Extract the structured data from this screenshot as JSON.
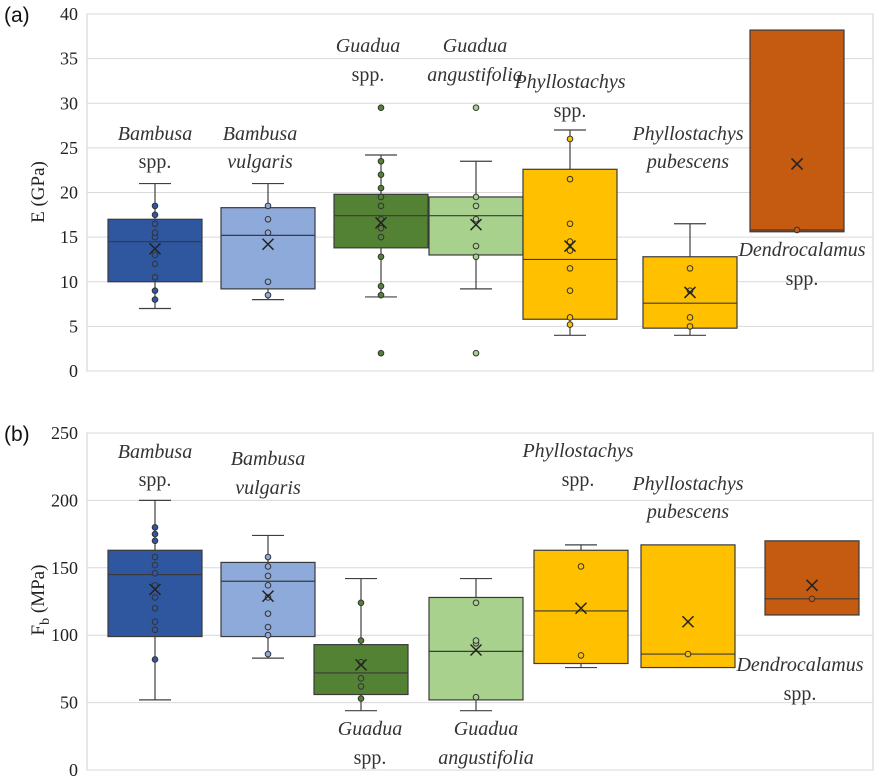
{
  "chart_data": [
    {
      "type": "box",
      "panel_label": "(a)",
      "ylabel": "E (GPa)",
      "ylim": [
        0,
        40
      ],
      "yticks": [
        "0",
        "5",
        "10",
        "15",
        "20",
        "25",
        "30",
        "35",
        "40"
      ],
      "grid": true,
      "species": [
        {
          "name": "Bambusa spp.",
          "label": [
            "Bambusa",
            "spp."
          ],
          "color": "#2f57a0",
          "whisker_low": 7,
          "q1": 10,
          "median": 14.5,
          "q3": 17,
          "whisker_high": 21,
          "mean": 13.7,
          "points": [
            8,
            9,
            10.5,
            12,
            13,
            15,
            15.5,
            16.5,
            17.5,
            18.5
          ]
        },
        {
          "name": "Bambusa vulgaris",
          "label": [
            "Bambusa",
            "vulgaris"
          ],
          "color": "#8eaadb",
          "whisker_low": 8,
          "q1": 9.2,
          "median": 15.2,
          "q3": 18.3,
          "whisker_high": 21,
          "mean": 14.2,
          "points": [
            8.5,
            10,
            15.5,
            17,
            18.5
          ]
        },
        {
          "name": "Guadua spp.",
          "label": [
            "Guadua",
            "spp."
          ],
          "color": "#548235",
          "whisker_low": 8.3,
          "q1": 13.8,
          "median": 17.4,
          "q3": 19.8,
          "whisker_high": 24.2,
          "mean": 16.6,
          "points": [
            2,
            8.5,
            9.5,
            12.8,
            15,
            16,
            17,
            18.5,
            19.5,
            20.5,
            22,
            23.5,
            29.5
          ]
        },
        {
          "name": "Guadua angustifolia",
          "label": [
            "Guadua",
            "angustifolia"
          ],
          "color": "#a9d18e",
          "whisker_low": 9.2,
          "q1": 13,
          "median": 17.4,
          "q3": 19.5,
          "whisker_high": 23.5,
          "mean": 16.4,
          "points": [
            2,
            12.8,
            14,
            17,
            18.5,
            19.5,
            29.5
          ]
        },
        {
          "name": "Phyllostachys spp.",
          "label": [
            "Phyllostachys",
            "spp."
          ],
          "color": "#ffc000",
          "whisker_low": 4,
          "q1": 5.8,
          "median": 12.5,
          "q3": 22.6,
          "whisker_high": 27,
          "mean": 14,
          "points": [
            5.2,
            6,
            9,
            11.5,
            13.5,
            14.5,
            16.5,
            21.5,
            26
          ]
        },
        {
          "name": "Phyllostachys pubescens",
          "label": [
            "Phyllostachys",
            "pubescens"
          ],
          "color": "#ffc000",
          "whisker_low": 4,
          "q1": 4.8,
          "median": 7.6,
          "q3": 12.8,
          "whisker_high": 16.5,
          "mean": 8.8,
          "points": [
            5,
            6,
            9,
            11.5
          ]
        },
        {
          "name": "Dendrocalamus spp.",
          "label": [
            "Dendrocalamus",
            "spp."
          ],
          "color": "#c55a11",
          "whisker_low": 15.6,
          "q1": 15.6,
          "median": 15.8,
          "q3": 38.2,
          "whisker_high": 38.2,
          "mean": 23.2,
          "points": [
            15.8
          ]
        }
      ]
    },
    {
      "type": "box",
      "panel_label": "(b)",
      "ylabel": "Fb (MPa)",
      "ylabel_main": "F",
      "ylabel_sub": "b",
      "ylabel_unit": " (MPa)",
      "ylim": [
        0,
        250
      ],
      "yticks": [
        "0",
        "50",
        "100",
        "150",
        "200",
        "250"
      ],
      "grid": true,
      "species": [
        {
          "name": "Bambusa spp.",
          "label": [
            "Bambusa",
            "spp."
          ],
          "color": "#2f57a0",
          "whisker_low": 52,
          "q1": 99,
          "median": 145,
          "q3": 163,
          "whisker_high": 200,
          "mean": 134,
          "points": [
            82,
            104,
            110,
            120,
            128,
            137,
            146,
            152,
            158,
            170,
            175,
            180
          ]
        },
        {
          "name": "Bambusa vulgaris",
          "label": [
            "Bambusa",
            "vulgaris"
          ],
          "color": "#8eaadb",
          "whisker_low": 83,
          "q1": 99,
          "median": 140,
          "q3": 154,
          "whisker_high": 174,
          "mean": 129,
          "points": [
            86,
            100,
            106,
            116,
            128,
            137,
            144,
            151,
            158
          ]
        },
        {
          "name": "Guadua spp.",
          "label": [
            "Guadua",
            "spp."
          ],
          "color": "#548235",
          "whisker_low": 44,
          "q1": 56,
          "median": 72,
          "q3": 93,
          "whisker_high": 142,
          "mean": 78,
          "points": [
            53,
            62,
            68,
            80,
            96,
            124
          ]
        },
        {
          "name": "Guadua angustifolia",
          "label": [
            "Guadua",
            "angustifolia"
          ],
          "color": "#a9d18e",
          "whisker_low": 44,
          "q1": 52,
          "median": 88,
          "q3": 128,
          "whisker_high": 142,
          "mean": 89,
          "points": [
            54,
            94,
            96,
            124
          ]
        },
        {
          "name": "Phyllostachys spp.",
          "label": [
            "Phyllostachys",
            "spp."
          ],
          "color": "#ffc000",
          "whisker_low": 76,
          "q1": 79,
          "median": 118,
          "q3": 163,
          "whisker_high": 167,
          "mean": 120,
          "points": [
            85,
            151
          ]
        },
        {
          "name": "Phyllostachys pubescens",
          "label": [
            "Phyllostachys",
            "pubescens"
          ],
          "color": "#ffc000",
          "whisker_low": 76,
          "q1": 76,
          "median": 86,
          "q3": 167,
          "whisker_high": 167,
          "mean": 110,
          "points": [
            86
          ]
        },
        {
          "name": "Dendrocalamus spp.",
          "label": [
            "Dendrocalamus",
            "spp."
          ],
          "color": "#c55a11",
          "whisker_low": 115,
          "q1": 115,
          "median": 127,
          "q3": 170,
          "whisker_high": 170,
          "mean": 137,
          "points": [
            127
          ]
        }
      ]
    }
  ]
}
